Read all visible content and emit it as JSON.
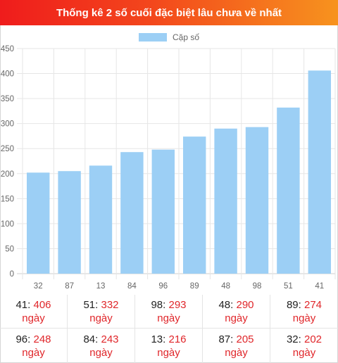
{
  "header": {
    "title": "Thống kê 2 số cuối đặc biệt lâu chưa về nhất"
  },
  "colors": {
    "bar": "#9ccff5",
    "accent": "#e0262a",
    "header_start": "#ef1c1c",
    "header_end": "#f7931e"
  },
  "chart_data": {
    "type": "bar",
    "title": "",
    "xlabel": "",
    "ylabel": "",
    "legend": {
      "label": "Cặp số",
      "position": "top"
    },
    "grid": true,
    "categories": [
      "32",
      "87",
      "13",
      "84",
      "96",
      "89",
      "48",
      "98",
      "51",
      "41"
    ],
    "series": [
      {
        "name": "Cặp số",
        "values": [
          202,
          205,
          216,
          243,
          248,
          274,
          290,
          293,
          332,
          406
        ]
      }
    ],
    "ylim": [
      0,
      450
    ],
    "yticks": [
      0,
      50,
      100,
      150,
      200,
      250,
      300,
      350,
      400,
      450
    ]
  },
  "table": {
    "unit": "ngày",
    "rows": [
      [
        {
          "num": "41",
          "val": "406"
        },
        {
          "num": "51",
          "val": "332"
        },
        {
          "num": "98",
          "val": "293"
        },
        {
          "num": "48",
          "val": "290"
        },
        {
          "num": "89",
          "val": "274"
        }
      ],
      [
        {
          "num": "96",
          "val": "248"
        },
        {
          "num": "84",
          "val": "243"
        },
        {
          "num": "13",
          "val": "216"
        },
        {
          "num": "87",
          "val": "205"
        },
        {
          "num": "32",
          "val": "202"
        }
      ]
    ]
  }
}
